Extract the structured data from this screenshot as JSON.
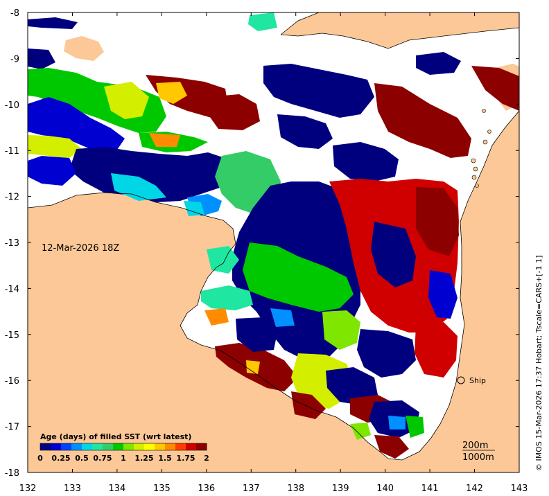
{
  "colors": {
    "land": "#fcc897",
    "water_nodata": "#ffffff",
    "frame": "#000000",
    "colormap": [
      "#00007f",
      "#0000d0",
      "#0040ff",
      "#0090ff",
      "#00d6e6",
      "#1fe6a0",
      "#33cc66",
      "#00c800",
      "#7fe600",
      "#d4ee00",
      "#ffff00",
      "#ffc800",
      "#ff8c00",
      "#ff3c00",
      "#d00000",
      "#8c0000"
    ]
  },
  "map": {
    "date_label": "12-Mar-2026 18Z",
    "credit": "© IMOS 15-Mar-2026 17:37 Hobart; Tscale=CARS+[-1 1]",
    "ship_label": "Ship",
    "contour_labels": [
      "200m",
      "1000m"
    ],
    "x_ticks": [
      "132",
      "133",
      "134",
      "135",
      "136",
      "137",
      "138",
      "139",
      "140",
      "141",
      "142",
      "143"
    ],
    "y_ticks": [
      "-8",
      "-9",
      "-10",
      "-11",
      "-12",
      "-13",
      "-14",
      "-15",
      "-16",
      "-17",
      "-18"
    ]
  },
  "legend": {
    "title": "Age (days) of filled SST (wrt latest)",
    "ticks": [
      "0",
      "0.25",
      "0.5",
      "0.75",
      "1",
      "1.25",
      "1.5",
      "1.75",
      "2"
    ]
  }
}
